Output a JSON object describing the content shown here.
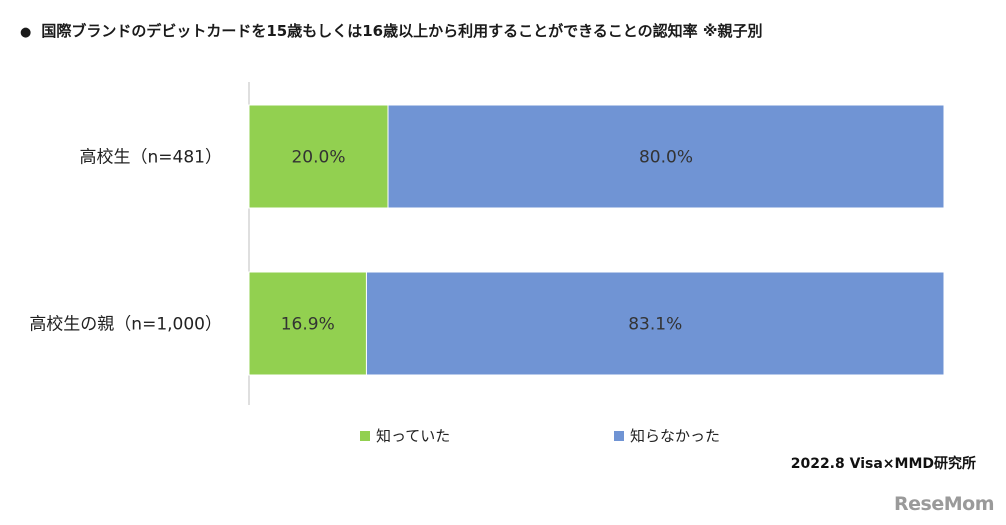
{
  "title": "国際ブランドのデビットカードを15歳もしくは16歳以上から利用することができることの認知率 ※親子別",
  "bullet": "●",
  "source": "2022.8 Visa×MMD研究所",
  "logo": "ReseMom",
  "colors": {
    "known": "#92d050",
    "unknown": "#7094d4",
    "axis": "#bfbfbf"
  },
  "chart_data": {
    "type": "bar",
    "orientation": "horizontal",
    "stacked": true,
    "normalized": true,
    "categories": [
      "高校生（n=481）",
      "高校生の親（n=1,000）"
    ],
    "series": [
      {
        "name": "知っていた",
        "values": [
          20.0,
          16.9
        ],
        "labels": [
          "20.0%",
          "16.9%"
        ]
      },
      {
        "name": "知らなかった",
        "values": [
          80.0,
          83.1
        ],
        "labels": [
          "80.0%",
          "83.1%"
        ]
      }
    ],
    "xlim": [
      0,
      100
    ],
    "grid": false,
    "legend": "bottom"
  }
}
